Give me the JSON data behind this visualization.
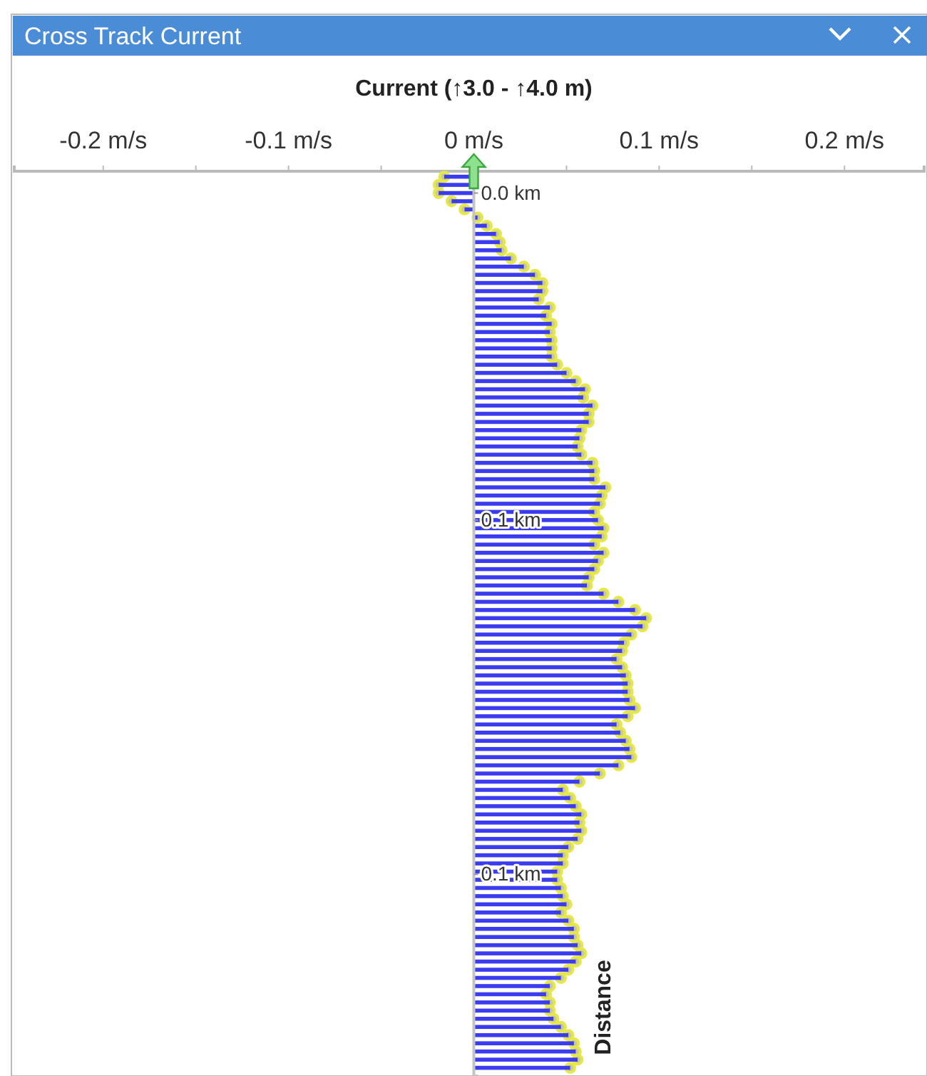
{
  "chart_data": {
    "type": "bar",
    "orientation": "horizontal",
    "title": "Cross Track Current",
    "xlabel": "Current (↑3.0 - ↑4.0 m)",
    "ylabel": "Distance",
    "xlim": [
      -0.248,
      0.243
    ],
    "xticks": [
      {
        "value": -0.2,
        "label": "-0.2 m/s"
      },
      {
        "value": -0.15,
        "label": null
      },
      {
        "value": -0.1,
        "label": "-0.1 m/s"
      },
      {
        "value": -0.05,
        "label": null
      },
      {
        "value": 0,
        "label": "0 m/s"
      },
      {
        "value": 0.05,
        "label": null
      },
      {
        "value": 0.1,
        "label": "0.1 m/s"
      },
      {
        "value": 0.15,
        "label": null
      },
      {
        "value": 0.2,
        "label": "0.2 m/s"
      }
    ],
    "ylim": [
      0.162,
      -0.004
    ],
    "yticks": [
      {
        "value": 0,
        "label": "0.0 km"
      },
      {
        "value": 0.06,
        "label": "0.1 km"
      },
      {
        "value": 0.125,
        "label": "0.1 km"
      }
    ],
    "x": [
      -0.003,
      -0.0015,
      0,
      0.0015,
      0.003,
      0.0045,
      0.006,
      0.0075,
      0.009,
      0.0105,
      0.012,
      0.0135,
      0.015,
      0.0165,
      0.018,
      0.0195,
      0.021,
      0.0225,
      0.024,
      0.0255,
      0.027,
      0.0285,
      0.03,
      0.0315,
      0.033,
      0.0345,
      0.036,
      0.0375,
      0.039,
      0.0405,
      0.042,
      0.0435,
      0.045,
      0.0465,
      0.048,
      0.0495,
      0.051,
      0.0525,
      0.054,
      0.0555,
      0.057,
      0.0585,
      0.06,
      0.0615,
      0.063,
      0.0645,
      0.066,
      0.0675,
      0.069,
      0.0705,
      0.072,
      0.0735,
      0.075,
      0.0765,
      0.078,
      0.0795,
      0.081,
      0.0825,
      0.084,
      0.0855,
      0.087,
      0.0885,
      0.09,
      0.0915,
      0.093,
      0.0945,
      0.096,
      0.0975,
      0.099,
      0.1005,
      0.102,
      0.1035,
      0.105,
      0.1065,
      0.108,
      0.1095,
      0.111,
      0.1125,
      0.114,
      0.1155,
      0.117,
      0.1185,
      0.12,
      0.1215,
      0.123,
      0.1245,
      0.126,
      0.1275,
      0.129,
      0.1305,
      0.132,
      0.1335,
      0.135,
      0.1365,
      0.138,
      0.1395,
      0.141,
      0.1425,
      0.144,
      0.1455,
      0.147,
      0.1485,
      0.15,
      0.1515,
      0.153,
      0.1545,
      0.156,
      0.1575,
      0.159,
      0.1605
    ],
    "marker": "circle",
    "series": [
      {
        "color": "#3b3bef",
        "values": [
          -0.016,
          -0.019,
          -0.019,
          -0.012,
          -0.005,
          0.002,
          0.007,
          0.012,
          0.014,
          0.015,
          0.02,
          0.027,
          0.033,
          0.037,
          0.037,
          0.035,
          0.041,
          0.039,
          0.042,
          0.041,
          0.042,
          0.042,
          0.042,
          0.045,
          0.05,
          0.055,
          0.06,
          0.059,
          0.064,
          0.062,
          0.062,
          0.058,
          0.057,
          0.056,
          0.058,
          0.064,
          0.065,
          0.065,
          0.071,
          0.069,
          0.068,
          0.065,
          0.067,
          0.07,
          0.069,
          0.065,
          0.07,
          0.067,
          0.065,
          0.062,
          0.061,
          0.07,
          0.078,
          0.087,
          0.093,
          0.091,
          0.085,
          0.081,
          0.08,
          0.077,
          0.08,
          0.082,
          0.083,
          0.083,
          0.084,
          0.087,
          0.083,
          0.077,
          0.079,
          0.082,
          0.084,
          0.085,
          0.078,
          0.068,
          0.057,
          0.048,
          0.052,
          0.055,
          0.058,
          0.057,
          0.058,
          0.056,
          0.051,
          0.048,
          0.048,
          0.045,
          0.045,
          0.047,
          0.048,
          0.05,
          0.047,
          0.051,
          0.054,
          0.054,
          0.056,
          0.058,
          0.055,
          0.051,
          0.047,
          0.041,
          0.039,
          0.041,
          0.041,
          0.043,
          0.047,
          0.051,
          0.054,
          0.055,
          0.056,
          0.052
        ]
      },
      {
        "type": "scatter",
        "color": "#e6e84a",
        "values": [
          -0.016,
          -0.019,
          -0.019,
          -0.012,
          -0.005,
          0.002,
          0.007,
          0.012,
          0.014,
          0.015,
          0.02,
          0.027,
          0.033,
          0.037,
          0.037,
          0.035,
          0.041,
          0.039,
          0.042,
          0.041,
          0.042,
          0.042,
          0.042,
          0.045,
          0.05,
          0.055,
          0.06,
          0.059,
          0.064,
          0.062,
          0.062,
          0.058,
          0.057,
          0.056,
          0.058,
          0.064,
          0.065,
          0.065,
          0.071,
          0.069,
          0.068,
          0.065,
          0.067,
          0.07,
          0.069,
          0.065,
          0.07,
          0.067,
          0.065,
          0.062,
          0.061,
          0.07,
          0.078,
          0.087,
          0.093,
          0.091,
          0.085,
          0.081,
          0.08,
          0.077,
          0.08,
          0.082,
          0.083,
          0.083,
          0.084,
          0.087,
          0.083,
          0.077,
          0.079,
          0.082,
          0.084,
          0.085,
          0.078,
          0.068,
          0.057,
          0.048,
          0.052,
          0.055,
          0.058,
          0.057,
          0.058,
          0.056,
          0.051,
          0.048,
          0.048,
          0.045,
          0.045,
          0.047,
          0.048,
          0.05,
          0.047,
          0.051,
          0.054,
          0.054,
          0.056,
          0.058,
          0.055,
          0.051,
          0.047,
          0.041,
          0.039,
          0.041,
          0.041,
          0.043,
          0.047,
          0.051,
          0.054,
          0.055,
          0.056,
          0.052
        ]
      }
    ]
  }
}
